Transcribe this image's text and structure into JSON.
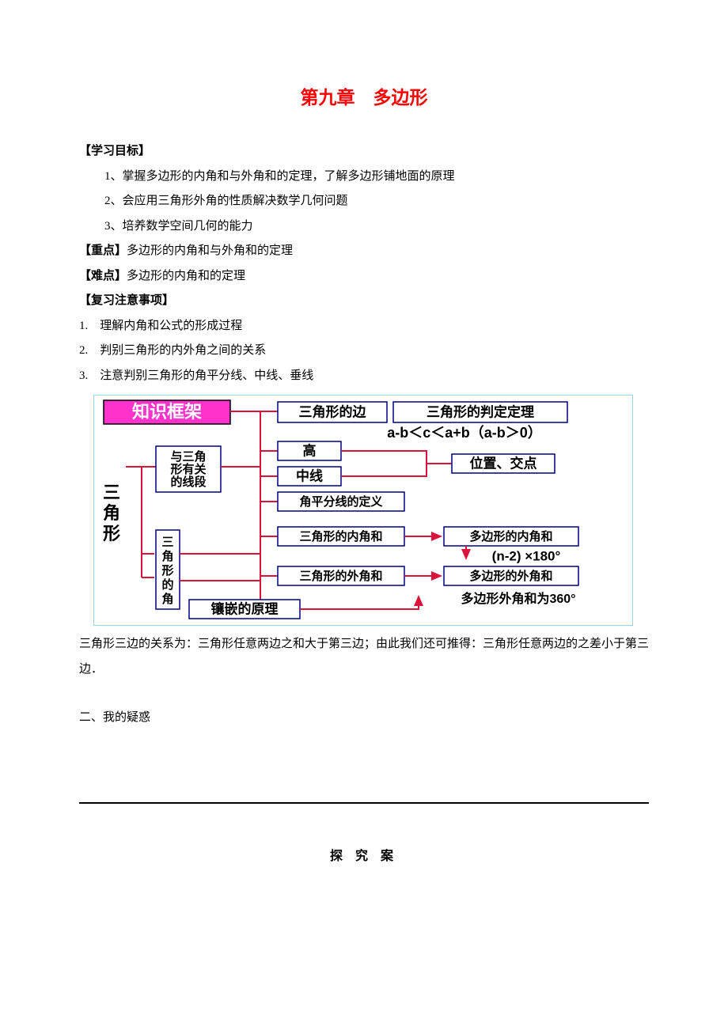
{
  "title": "第九章　多边形",
  "sections": {
    "objectives_header": "【学习目标】",
    "objectives": [
      "1、掌握多边形的内角和与外角和的定理，了解多边形铺地面的原理",
      "2、会应用三角形外角的性质解决数学几何问题",
      "3、培养数学空间几何的能力"
    ],
    "key_header": "【重点】",
    "key_text": "多边形的内角和与外角和的定理",
    "diff_header": "【难点】",
    "diff_text": "多边形的内角和的定理",
    "review_header": "【复习注意事项】",
    "review_items": [
      "1.　理解内角和公式的形成过程",
      "2.　判别三角形的内外角之间的关系",
      "3.　注意判别三角形的角平分线、中线、垂线"
    ],
    "relation_text": "三角形三边的关系为：三角形任意两边之和大于第三边；由此我们还可推得：三角形任意两边的之差小于第三边．",
    "doubt_header": "二、我的疑惑",
    "explore_header": "探 究 案"
  },
  "diagram": {
    "frame_label": "知识框架",
    "root": "三角形",
    "segments_box": "与三角形有关的线段",
    "angles_box": "三角形的角",
    "edge": "三角形的边",
    "judge": "三角形的判定定理",
    "inequality": "a-b＜c＜a+b（a-b＞0）",
    "height": "高",
    "median": "中线",
    "bisector": "角平分线的定义",
    "pos": "位置、交点",
    "inner_tri": "三角形的内角和",
    "inner_poly": "多边形的内角和",
    "inner_formula": "(n-2) ×180°",
    "outer_tri": "三角形的外角和",
    "outer_poly": "多边形的外角和",
    "outer_formula": "多边形外角和为360°",
    "tess": "镶嵌的原理",
    "colors": {
      "frame_fill": "#ff33cc",
      "frame_text": "#ffffff",
      "box_stroke": "#000080",
      "line": "#dc143c",
      "border": "#9bd3e6"
    }
  }
}
